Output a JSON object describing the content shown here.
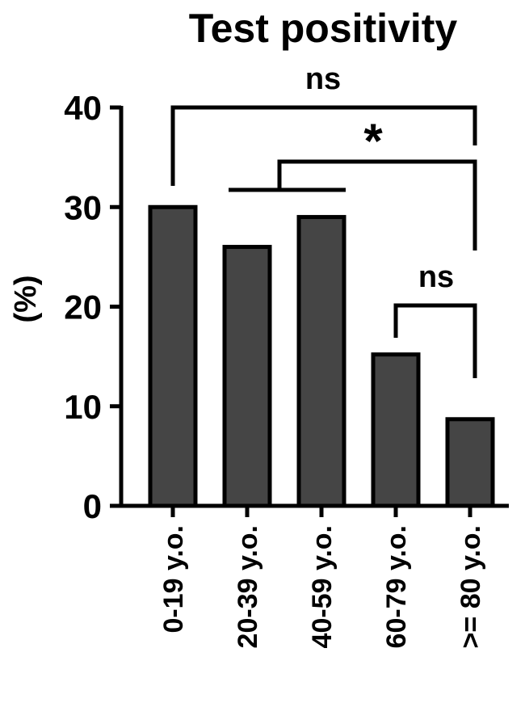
{
  "chart_data": {
    "type": "bar",
    "title": "Test positivity",
    "y_label": "(%)",
    "categories": [
      "0-19 y.o.",
      "20-39 y.o.",
      "40-59 y.o.",
      "60-79 y.o.",
      ">= 80 y.o."
    ],
    "values": [
      30,
      26,
      29,
      15.2,
      8.7
    ],
    "color": "#454545",
    "ylim": [
      0,
      40
    ],
    "yticks": [
      0,
      10,
      20,
      30,
      40
    ],
    "grid": false,
    "annotations": [
      "ns",
      "*",
      "ns"
    ]
  }
}
